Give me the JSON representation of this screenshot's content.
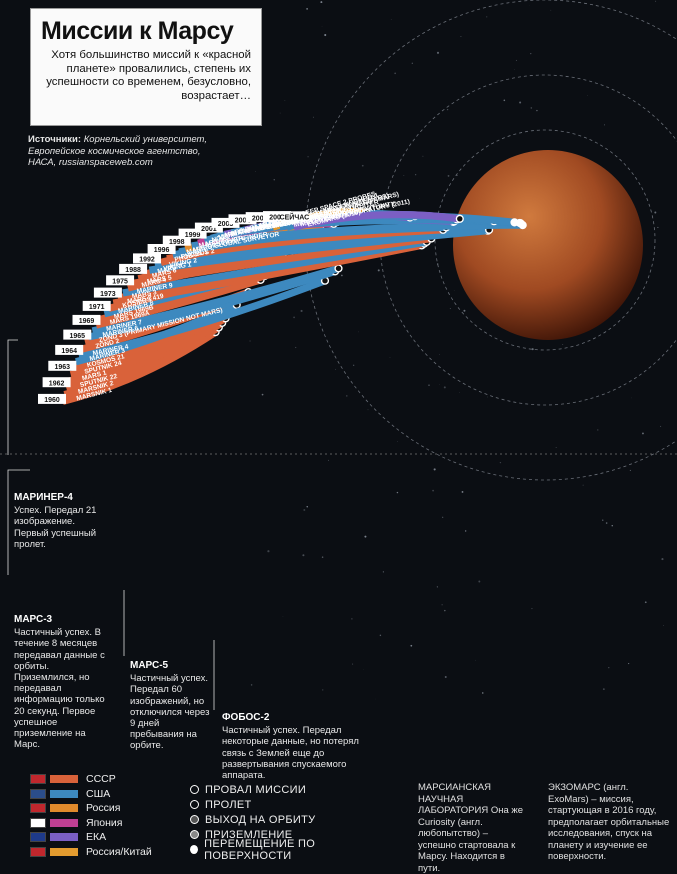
{
  "title": "Миссии к Марсу",
  "subtitle": "Хотя большинство миссий к «красной планете» провалились, степень их успешности со временем, безусловно, возрастает…",
  "sources": {
    "label": "Источники:",
    "text": "Корнельский университет, Европейское космическое агентство, НАСА, russianspaceweb.com"
  },
  "colors": {
    "ussr": "#d9623a",
    "usa": "#3d89bf",
    "russia": "#e08a2c",
    "japan": "#bf3f93",
    "esa": "#7b5fc4",
    "ru_cn": "#e39b2f"
  },
  "missions": [
    {
      "name": "MARSNIK 1",
      "agency": "ussr",
      "outcome": "fail"
    },
    {
      "name": "MARSNIK 2",
      "agency": "ussr",
      "outcome": "fail"
    },
    {
      "name": "SPUTNIK 22",
      "agency": "ussr",
      "outcome": "fail"
    },
    {
      "name": "MARS 1",
      "agency": "ussr",
      "outcome": "fail"
    },
    {
      "name": "SPUTNIK 24",
      "agency": "ussr",
      "outcome": "fail"
    },
    {
      "name": "KOSMOS 21",
      "agency": "ussr",
      "outcome": "fail"
    },
    {
      "name": "MARINER 3",
      "agency": "usa",
      "outcome": "fail"
    },
    {
      "name": "MARINER 4",
      "agency": "usa",
      "outcome": "flyby"
    },
    {
      "name": "ZOND 2",
      "agency": "ussr",
      "outcome": "fail"
    },
    {
      "name": "ZOND 3",
      "agency": "ussr",
      "outcome": "fail",
      "note": "(PRIMARY MISSION NOT MARS)"
    },
    {
      "name": "MARINER 6",
      "agency": "usa",
      "outcome": "flyby"
    },
    {
      "name": "MARINER 7",
      "agency": "usa",
      "outcome": "flyby"
    },
    {
      "name": "MARS 1969A",
      "agency": "ussr",
      "outcome": "fail"
    },
    {
      "name": "MARS 1969B",
      "agency": "ussr",
      "outcome": "fail"
    },
    {
      "name": "MARINER 8",
      "agency": "usa",
      "outcome": "fail"
    },
    {
      "name": "KOSMOS 419",
      "agency": "ussr",
      "outcome": "fail"
    },
    {
      "name": "MARS 2",
      "agency": "ussr",
      "outcome": "orbit"
    },
    {
      "name": "MARS 3",
      "agency": "ussr",
      "outcome": "orbit"
    },
    {
      "name": "MARINER 9",
      "agency": "usa",
      "outcome": "orbit"
    },
    {
      "name": "MARS 4",
      "agency": "ussr",
      "outcome": "fail"
    },
    {
      "name": "MARS 5",
      "agency": "ussr",
      "outcome": "orbit"
    },
    {
      "name": "MARS 6",
      "agency": "ussr",
      "outcome": "fail"
    },
    {
      "name": "MARS 7",
      "agency": "ussr",
      "outcome": "fail"
    },
    {
      "name": "VIKING 1",
      "agency": "usa",
      "outcome": "landing"
    },
    {
      "name": "VIKING 2",
      "agency": "usa",
      "outcome": "landing"
    },
    {
      "name": "PHOBOS 1",
      "agency": "ussr",
      "outcome": "fail"
    },
    {
      "name": "PHOBOS 2",
      "agency": "ussr",
      "outcome": "orbit"
    },
    {
      "name": "MARS OBSERVER",
      "agency": "usa",
      "outcome": "fail"
    },
    {
      "name": "MARS GLOBAL SURVEYOR",
      "agency": "usa",
      "outcome": "orbit"
    },
    {
      "name": "MARS 96",
      "agency": "russia",
      "outcome": "fail"
    },
    {
      "name": "MARS PATHFINDER",
      "agency": "usa",
      "outcome": "surface"
    },
    {
      "name": "NOZOMI",
      "agency": "japan",
      "outcome": "fail"
    },
    {
      "name": "MARS CLIMATE ORBITER",
      "agency": "usa",
      "outcome": "fail"
    },
    {
      "name": "MARS POLAR LANDER / DEEP SPACE 2 PROBES",
      "agency": "usa",
      "outcome": "fail"
    },
    {
      "name": "MARS ODYSSEY",
      "agency": "usa",
      "outcome": "orbit"
    },
    {
      "name": "MARS EXPRESS / BEAGLE 2",
      "agency": "esa",
      "outcome": "orbit"
    },
    {
      "name": "MARS EXPLORATION ROVER: SPIRIT",
      "agency": "usa",
      "outcome": "surface"
    },
    {
      "name": "MARS EXPLORATION ROVER: OPPORTUNITY",
      "agency": "usa",
      "outcome": "surface"
    },
    {
      "name": "ROSETTA",
      "agency": "esa",
      "outcome": "flyby",
      "note": "(PRIMARY MISSION NOT MARS)"
    },
    {
      "name": "MARS RECONNAISSANCE ORBITER",
      "agency": "usa",
      "outcome": "orbit"
    },
    {
      "name": "PHOENIX MARS LANDER",
      "agency": "usa",
      "outcome": "landing"
    },
    {
      "name": "DAWN",
      "agency": "usa",
      "outcome": "flyby",
      "note": "(PRIMARY MISSION NOT MARS)"
    },
    {
      "name": "PHOBOS-GRUNT / YINGHUO-1",
      "agency": "ru_cn",
      "outcome": "fail"
    },
    {
      "name": "MARS SCIENCE LABORATORY",
      "agency": "usa",
      "outcome": "surface",
      "note": "(2011)"
    },
    {
      "name": "MAVEN",
      "agency": "usa",
      "outcome": "orbit",
      "note": "(2013)"
    },
    {
      "name": "EXOMARS",
      "agency": "esa",
      "outcome": "orbit",
      "note": "(2016)"
    }
  ],
  "years": [
    "1960",
    "1962",
    "1963",
    "1964",
    "1965",
    "1969",
    "1971",
    "1973",
    "1975",
    "1988",
    "1992",
    "1996",
    "1998",
    "1999",
    "2001",
    "2003",
    "2004",
    "2005",
    "2007",
    "СЕЙЧАС"
  ],
  "notes": {
    "mariner4": {
      "title": "МАРИНЕР-4",
      "text": "Успех. Передал 21 изображение. Первый успешный пролет."
    },
    "mars3": {
      "title": "МАРС-3",
      "text": "Частичный успех. В течение 8 месяцев передавал данные с орбиты. Приземлился, но передавал информацию только 20 секунд. Первое успешное приземление на Марс."
    },
    "mars5": {
      "title": "МАРС-5",
      "text": "Частичный успех. Передал 60 изображений, но отключился через 9 дней пребывания на орбите."
    },
    "phobos2": {
      "title": "ФОБОС-2",
      "text": "Частичный успех. Передал некоторые данные, но потерял связь с Землей еще до развертывания спускаемого аппарата."
    },
    "msl": {
      "text": "МАРСИАНСКАЯ НАУЧНАЯ ЛАБОРАТОРИЯ Она же Curiosity (англ. любопытство) – успешно стартовала к Марсу. Находится в пути."
    },
    "exomars": {
      "text": "ЭКЗОМАРС (англ. ExoMars) – миссия, стартующая в 2016 году, предполагает орбитальные исследования, спуск на планету и изучение ее поверхности."
    }
  },
  "legend_agencies": [
    {
      "label": "СССР",
      "key": "ussr"
    },
    {
      "label": "США",
      "key": "usa"
    },
    {
      "label": "Россия",
      "key": "russia"
    },
    {
      "label": "Япония",
      "key": "japan"
    },
    {
      "label": "ЕКА",
      "key": "esa"
    },
    {
      "label": "Россия/Китай",
      "key": "ru_cn"
    }
  ],
  "legend_outcomes": [
    {
      "label": "ПРОВАЛ МИССИИ",
      "key": "fail"
    },
    {
      "label": "ПРОЛЕТ",
      "key": "flyby"
    },
    {
      "label": "ВЫХОД НА ОРБИТУ",
      "key": "orbit"
    },
    {
      "label": "ПРИЗЕМЛЕНИЕ",
      "key": "landing"
    },
    {
      "label": "ПЕРЕМЕЩЕНИЕ ПО ПОВЕРХНОСТИ",
      "key": "surface"
    }
  ]
}
